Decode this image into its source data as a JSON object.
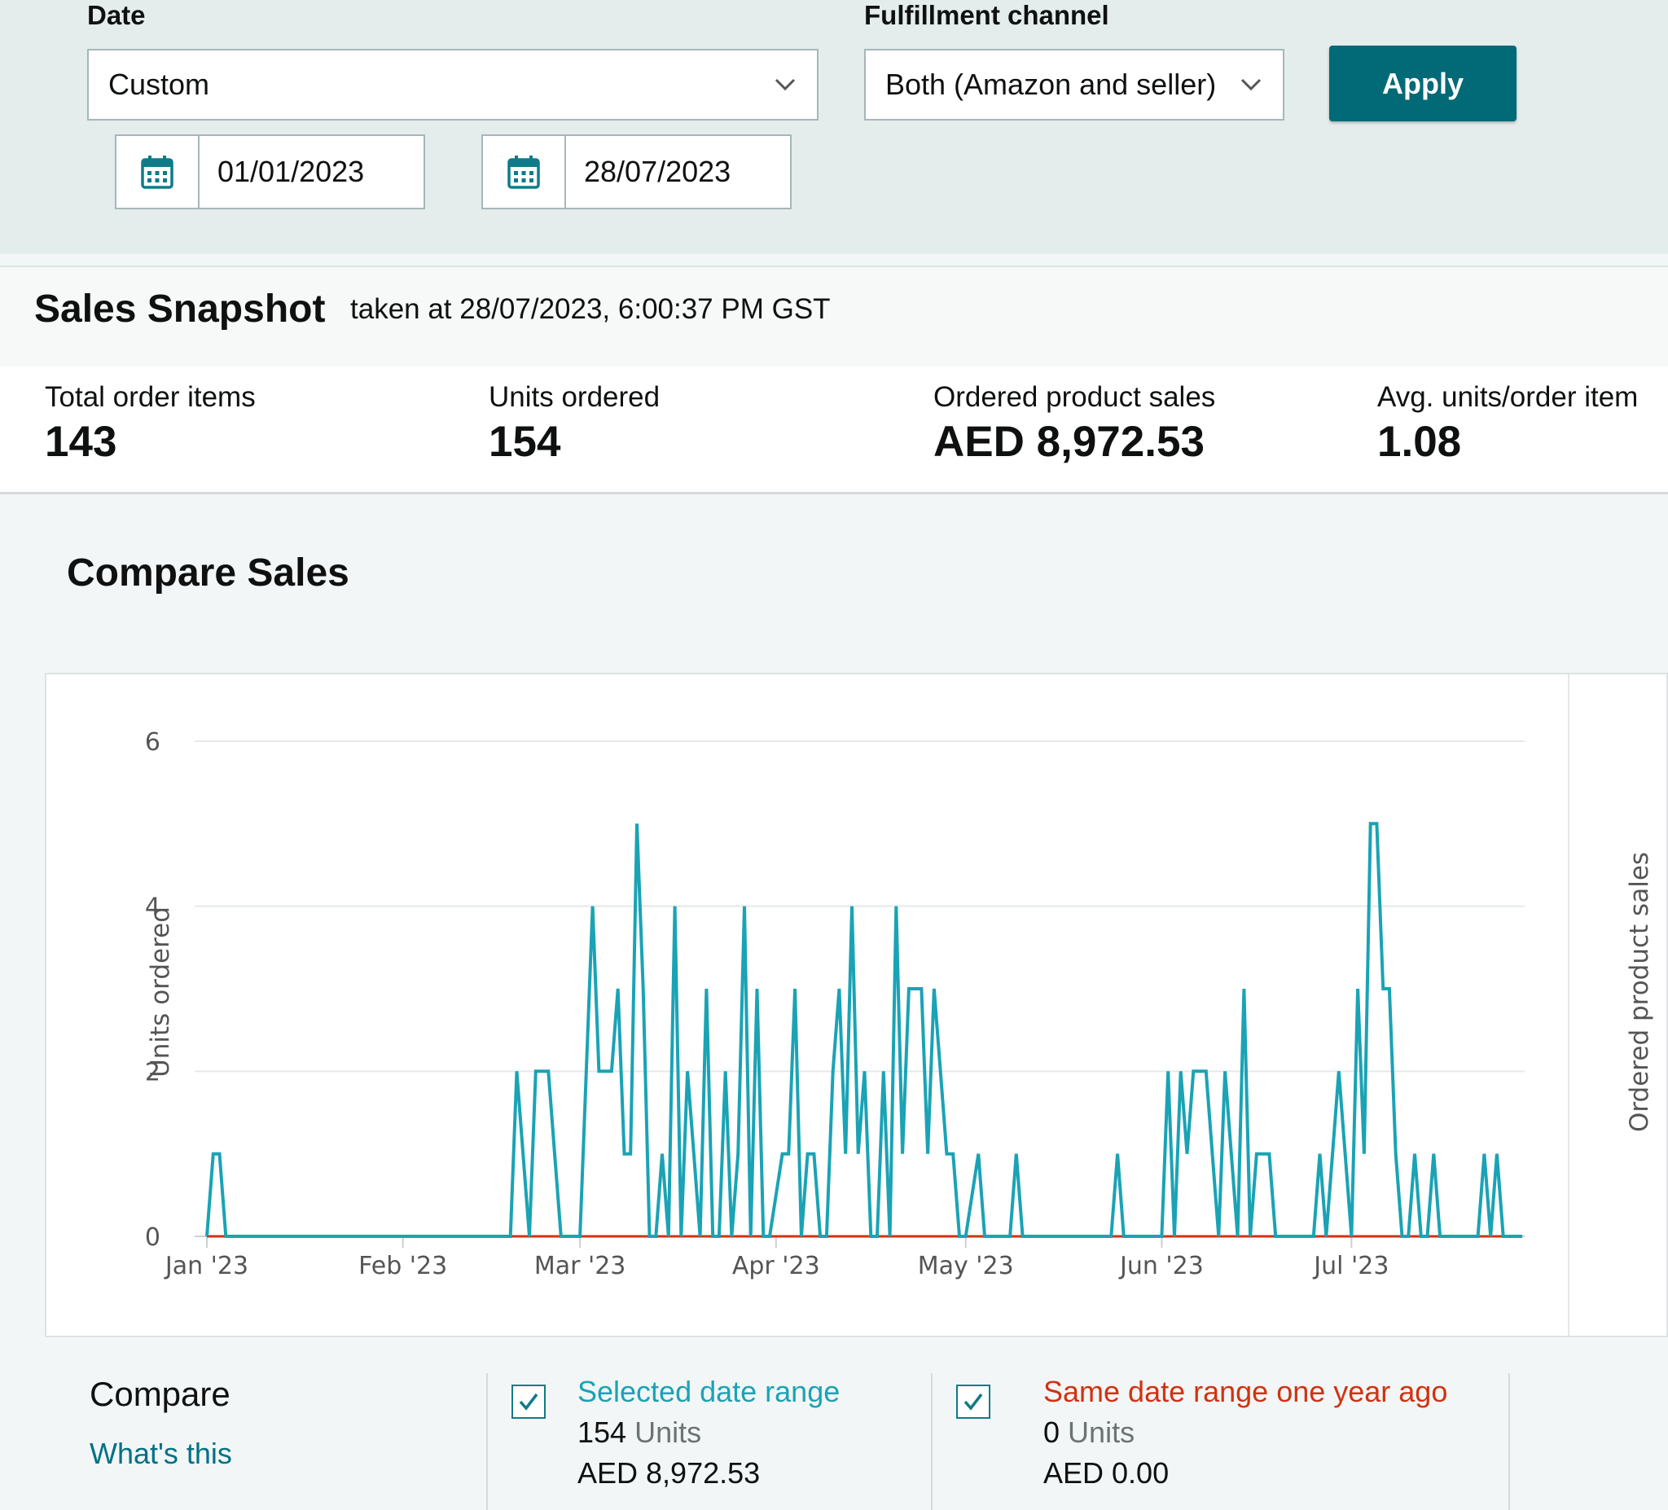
{
  "filters": {
    "date_label": "Date",
    "date_value": "Custom",
    "channel_label": "Fulfillment channel",
    "channel_value": "Both (Amazon and seller)",
    "start_date": "01/01/2023",
    "end_date": "28/07/2023",
    "apply_label": "Apply"
  },
  "snapshot": {
    "title": "Sales Snapshot",
    "subtitle": "taken at 28/07/2023, 6:00:37 PM GST",
    "metrics": [
      {
        "label": "Total order items",
        "value": "143"
      },
      {
        "label": "Units ordered",
        "value": "154"
      },
      {
        "label": "Ordered product sales",
        "value": "AED 8,972.53"
      },
      {
        "label": "Avg. units/order item",
        "value": "1.08"
      }
    ]
  },
  "compare": {
    "title": "Compare Sales",
    "label": "Compare",
    "link": "What's this",
    "legend": [
      {
        "title": "Selected date range",
        "units_value": "154",
        "units_suffix": "Units",
        "sales": "AED 8,972.53",
        "color": "#1aa3b5",
        "checked": true
      },
      {
        "title": "Same date range one year ago",
        "units_value": "0",
        "units_suffix": "Units",
        "sales": "AED 0.00",
        "color": "#d13212",
        "checked": true
      }
    ]
  },
  "chart_data": {
    "type": "line",
    "ylabel": "Units ordered",
    "ylabel_right": "Ordered product sales",
    "ylim": [
      0,
      6
    ],
    "yticks": [
      "0",
      "2",
      "4",
      "6"
    ],
    "grid": true,
    "x_start": "2023-01-01",
    "x_end": "2023-07-28",
    "xtick_labels": [
      "Jan '23",
      "Feb '23",
      "Mar '23",
      "Apr '23",
      "May '23",
      "Jun '23",
      "Jul '23"
    ],
    "xtick_dates": [
      "2023-01-01",
      "2023-02-01",
      "2023-03-01",
      "2023-04-01",
      "2023-05-01",
      "2023-06-01",
      "2023-07-01"
    ],
    "series": [
      {
        "name": "Selected date range",
        "color": "#1aa3b5",
        "points": [
          [
            "2023-01-01",
            0
          ],
          [
            "2023-01-02",
            1
          ],
          [
            "2023-01-03",
            1
          ],
          [
            "2023-01-04",
            0
          ],
          [
            "2023-02-18",
            0
          ],
          [
            "2023-02-19",
            2
          ],
          [
            "2023-02-20",
            1
          ],
          [
            "2023-02-21",
            0
          ],
          [
            "2023-02-22",
            2
          ],
          [
            "2023-02-23",
            2
          ],
          [
            "2023-02-24",
            2
          ],
          [
            "2023-02-25",
            1
          ],
          [
            "2023-02-26",
            0
          ],
          [
            "2023-02-28",
            0
          ],
          [
            "2023-03-01",
            0
          ],
          [
            "2023-03-03",
            4
          ],
          [
            "2023-03-04",
            2
          ],
          [
            "2023-03-05",
            2
          ],
          [
            "2023-03-06",
            2
          ],
          [
            "2023-03-07",
            3
          ],
          [
            "2023-03-08",
            1
          ],
          [
            "2023-03-09",
            1
          ],
          [
            "2023-03-10",
            5
          ],
          [
            "2023-03-11",
            3
          ],
          [
            "2023-03-12",
            0
          ],
          [
            "2023-03-13",
            0
          ],
          [
            "2023-03-14",
            1
          ],
          [
            "2023-03-15",
            0
          ],
          [
            "2023-03-16",
            4
          ],
          [
            "2023-03-17",
            0
          ],
          [
            "2023-03-18",
            2
          ],
          [
            "2023-03-19",
            1
          ],
          [
            "2023-03-20",
            0
          ],
          [
            "2023-03-21",
            3
          ],
          [
            "2023-03-22",
            0
          ],
          [
            "2023-03-23",
            0
          ],
          [
            "2023-03-24",
            2
          ],
          [
            "2023-03-25",
            0
          ],
          [
            "2023-03-26",
            1
          ],
          [
            "2023-03-27",
            4
          ],
          [
            "2023-03-28",
            0
          ],
          [
            "2023-03-29",
            3
          ],
          [
            "2023-03-30",
            0
          ],
          [
            "2023-03-31",
            0
          ],
          [
            "2023-04-02",
            1
          ],
          [
            "2023-04-03",
            1
          ],
          [
            "2023-04-04",
            3
          ],
          [
            "2023-04-05",
            0
          ],
          [
            "2023-04-06",
            1
          ],
          [
            "2023-04-07",
            1
          ],
          [
            "2023-04-08",
            0
          ],
          [
            "2023-04-09",
            0
          ],
          [
            "2023-04-10",
            2
          ],
          [
            "2023-04-11",
            3
          ],
          [
            "2023-04-12",
            1
          ],
          [
            "2023-04-13",
            4
          ],
          [
            "2023-04-14",
            1
          ],
          [
            "2023-04-15",
            2
          ],
          [
            "2023-04-16",
            0
          ],
          [
            "2023-04-17",
            0
          ],
          [
            "2023-04-18",
            2
          ],
          [
            "2023-04-19",
            0
          ],
          [
            "2023-04-20",
            4
          ],
          [
            "2023-04-21",
            1
          ],
          [
            "2023-04-22",
            3
          ],
          [
            "2023-04-23",
            3
          ],
          [
            "2023-04-24",
            3
          ],
          [
            "2023-04-25",
            1
          ],
          [
            "2023-04-26",
            3
          ],
          [
            "2023-04-27",
            2
          ],
          [
            "2023-04-28",
            1
          ],
          [
            "2023-04-29",
            1
          ],
          [
            "2023-04-30",
            0
          ],
          [
            "2023-05-01",
            0
          ],
          [
            "2023-05-03",
            1
          ],
          [
            "2023-05-04",
            0
          ],
          [
            "2023-05-08",
            0
          ],
          [
            "2023-05-09",
            1
          ],
          [
            "2023-05-10",
            0
          ],
          [
            "2023-05-24",
            0
          ],
          [
            "2023-05-25",
            1
          ],
          [
            "2023-05-26",
            0
          ],
          [
            "2023-06-01",
            0
          ],
          [
            "2023-06-02",
            2
          ],
          [
            "2023-06-03",
            0
          ],
          [
            "2023-06-04",
            2
          ],
          [
            "2023-06-05",
            1
          ],
          [
            "2023-06-06",
            2
          ],
          [
            "2023-06-07",
            2
          ],
          [
            "2023-06-08",
            2
          ],
          [
            "2023-06-09",
            1
          ],
          [
            "2023-06-10",
            0
          ],
          [
            "2023-06-11",
            2
          ],
          [
            "2023-06-12",
            1
          ],
          [
            "2023-06-13",
            0
          ],
          [
            "2023-06-14",
            3
          ],
          [
            "2023-06-15",
            0
          ],
          [
            "2023-06-16",
            1
          ],
          [
            "2023-06-17",
            1
          ],
          [
            "2023-06-18",
            1
          ],
          [
            "2023-06-19",
            0
          ],
          [
            "2023-06-25",
            0
          ],
          [
            "2023-06-26",
            1
          ],
          [
            "2023-06-27",
            0
          ],
          [
            "2023-06-28",
            1
          ],
          [
            "2023-06-29",
            2
          ],
          [
            "2023-06-30",
            1
          ],
          [
            "2023-07-01",
            0
          ],
          [
            "2023-07-02",
            3
          ],
          [
            "2023-07-03",
            1
          ],
          [
            "2023-07-04",
            5
          ],
          [
            "2023-07-05",
            5
          ],
          [
            "2023-07-06",
            3
          ],
          [
            "2023-07-07",
            3
          ],
          [
            "2023-07-08",
            1
          ],
          [
            "2023-07-09",
            0
          ],
          [
            "2023-07-10",
            0
          ],
          [
            "2023-07-11",
            1
          ],
          [
            "2023-07-12",
            0
          ],
          [
            "2023-07-13",
            0
          ],
          [
            "2023-07-14",
            1
          ],
          [
            "2023-07-15",
            0
          ],
          [
            "2023-07-21",
            0
          ],
          [
            "2023-07-22",
            1
          ],
          [
            "2023-07-23",
            0
          ],
          [
            "2023-07-24",
            1
          ],
          [
            "2023-07-25",
            0
          ],
          [
            "2023-07-28",
            0
          ]
        ]
      },
      {
        "name": "Same date range one year ago",
        "color": "#d13212",
        "points": [
          [
            "2023-01-01",
            0
          ],
          [
            "2023-07-28",
            0
          ]
        ]
      }
    ]
  }
}
